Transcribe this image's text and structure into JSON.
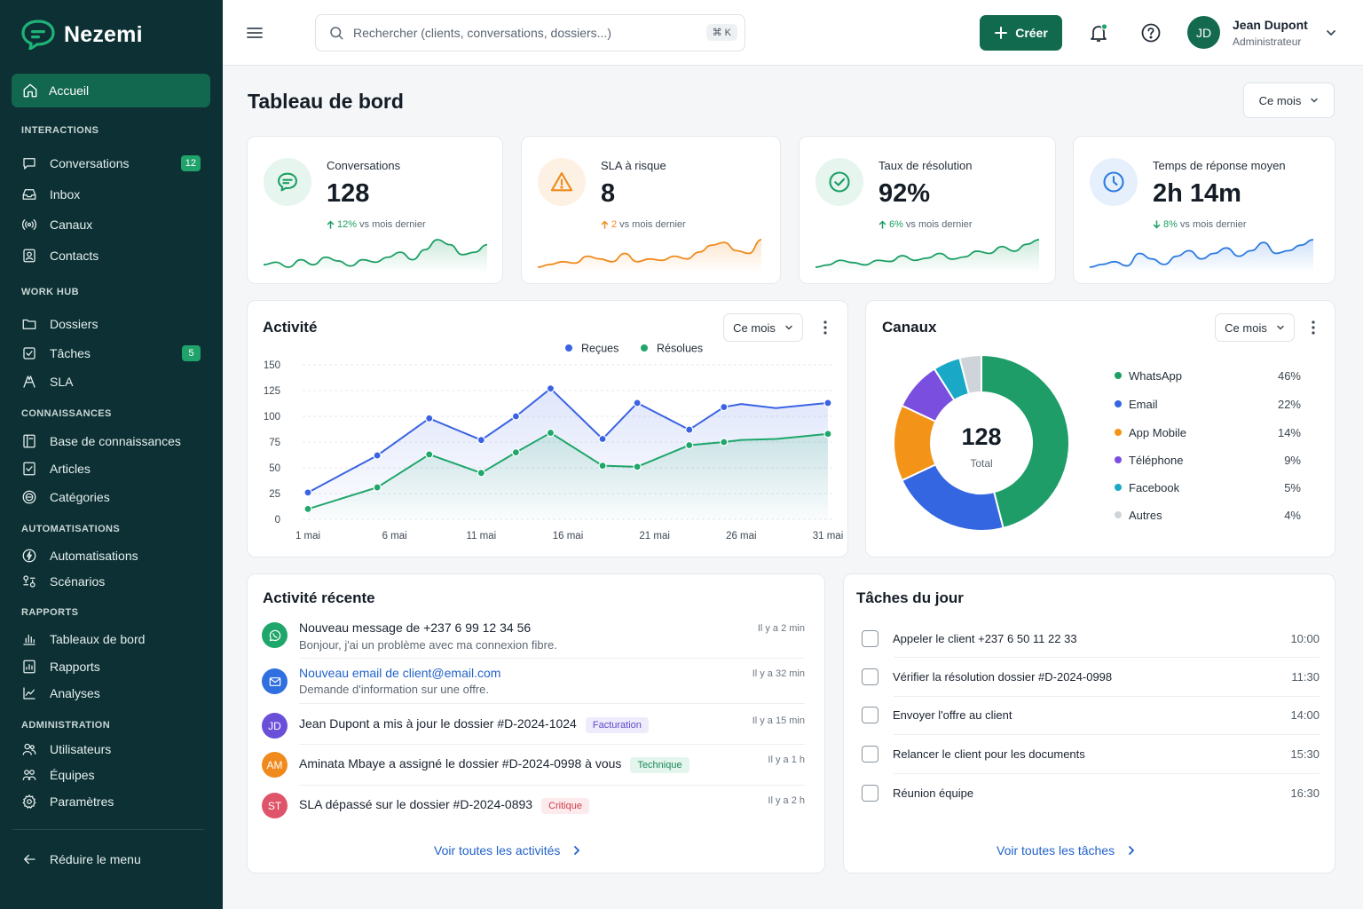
{
  "app": {
    "name": "Nezemi"
  },
  "sidebar": {
    "active_item": "Accueil",
    "sections": [
      {
        "title": "INTERACTIONS",
        "items": [
          {
            "label": "Conversations",
            "icon": "chat-icon",
            "badge": "12"
          },
          {
            "label": "Inbox",
            "icon": "inbox-icon"
          },
          {
            "label": "Canaux",
            "icon": "broadcast-icon"
          },
          {
            "label": "Contacts",
            "icon": "contact-icon"
          }
        ]
      },
      {
        "title": "WORK HUB",
        "items": [
          {
            "label": "Dossiers",
            "icon": "folder-icon"
          },
          {
            "label": "Tâches",
            "icon": "checkbox-icon",
            "badge": "5"
          },
          {
            "label": "SLA",
            "icon": "sla-icon"
          }
        ]
      },
      {
        "title": "CONNAISSANCES",
        "items": [
          {
            "label": "Base de connaissances",
            "icon": "book-icon"
          },
          {
            "label": "Articles",
            "icon": "article-icon"
          },
          {
            "label": "Catégories",
            "icon": "category-icon"
          }
        ]
      },
      {
        "title": "AUTOMATISATIONS",
        "items": [
          {
            "label": "Automatisations",
            "icon": "automation-icon"
          },
          {
            "label": "Scénarios",
            "icon": "scenario-icon"
          }
        ]
      },
      {
        "title": "RAPPORTS",
        "items": [
          {
            "label": "Tableaux de bord",
            "icon": "bar-chart-icon"
          },
          {
            "label": "Rapports",
            "icon": "report-icon"
          },
          {
            "label": "Analyses",
            "icon": "line-chart-icon"
          }
        ]
      },
      {
        "title": "ADMINISTRATION",
        "items": [
          {
            "label": "Utilisateurs",
            "icon": "users-icon"
          },
          {
            "label": "Équipes",
            "icon": "team-icon"
          },
          {
            "label": "Paramètres",
            "icon": "gear-icon"
          }
        ]
      }
    ],
    "collapse_label": "Réduire le menu"
  },
  "topbar": {
    "search_placeholder": "Rechercher (clients, conversations, dossiers...)",
    "shortcut": "⌘ K",
    "create_label": "Créer",
    "user": {
      "initials": "JD",
      "name": "Jean Dupont",
      "role": "Administrateur"
    }
  },
  "page": {
    "title": "Tableau de bord",
    "period": "Ce mois"
  },
  "kpis": [
    {
      "label": "Conversations",
      "value": "128",
      "trend_value": "12%",
      "trend_text": "vs mois dernier",
      "direction": "up",
      "color": "#1a9f64",
      "bg": "#e6f5ee",
      "icon": "chat-bubble-icon",
      "spark": [
        6,
        8,
        4,
        10,
        6,
        12,
        9,
        5,
        10,
        8,
        12,
        16,
        10,
        18,
        26,
        22,
        14,
        16,
        22
      ]
    },
    {
      "label": "SLA à risque",
      "value": "8",
      "trend_value": "2",
      "trend_text": "vs mois dernier",
      "direction": "up",
      "color": "#f08a1c",
      "bg": "#fdf1e4",
      "icon": "warning-icon",
      "spark": [
        4,
        6,
        8,
        7,
        12,
        10,
        8,
        14,
        8,
        10,
        9,
        12,
        10,
        15,
        20,
        22,
        16,
        14,
        24
      ]
    },
    {
      "label": "Taux de résolution",
      "value": "92%",
      "trend_value": "6%",
      "trend_text": "vs mois dernier",
      "direction": "up",
      "color": "#1a9f64",
      "bg": "#e6f5ee",
      "icon": "check-circle-icon",
      "spark": [
        4,
        6,
        10,
        8,
        6,
        10,
        9,
        14,
        10,
        12,
        16,
        11,
        13,
        18,
        16,
        22,
        18,
        24,
        28
      ]
    },
    {
      "label": "Temps de réponse moyen",
      "value": "2h 14m",
      "trend_value": "8%",
      "trend_text": "vs mois dernier",
      "direction": "down",
      "color": "#2d7be0",
      "bg": "#e6f0fc",
      "icon": "clock-icon",
      "spark": [
        6,
        8,
        10,
        7,
        16,
        12,
        8,
        14,
        18,
        12,
        16,
        20,
        14,
        18,
        24,
        16,
        18,
        22,
        26
      ]
    }
  ],
  "activity_card": {
    "title": "Activité",
    "period": "Ce mois"
  },
  "chart_data": {
    "type": "line",
    "x": [
      "1 mai",
      "6 mai",
      "11 mai",
      "16 mai",
      "21 mai",
      "26 mai",
      "31 mai"
    ],
    "ylim": [
      0,
      150
    ],
    "yticks": [
      0,
      25,
      50,
      75,
      100,
      125,
      150
    ],
    "legend_position": "top-center",
    "grid": true,
    "series": [
      {
        "name": "Reçues",
        "color": "#3a63e3",
        "points": [
          [
            1,
            26
          ],
          [
            5,
            62
          ],
          [
            8,
            98
          ],
          [
            11,
            77
          ],
          [
            13,
            100
          ],
          [
            15,
            127
          ],
          [
            18,
            78
          ],
          [
            20,
            113
          ],
          [
            23,
            87
          ],
          [
            25,
            109
          ],
          [
            26,
            112
          ],
          [
            28,
            108
          ],
          [
            31,
            113
          ]
        ]
      },
      {
        "name": "Résolues",
        "color": "#1fa66a",
        "points": [
          [
            1,
            10
          ],
          [
            5,
            31
          ],
          [
            8,
            63
          ],
          [
            11,
            45
          ],
          [
            13,
            65
          ],
          [
            15,
            84
          ],
          [
            18,
            52
          ],
          [
            20,
            51
          ],
          [
            23,
            72
          ],
          [
            25,
            75
          ],
          [
            26,
            77
          ],
          [
            28,
            78
          ],
          [
            31,
            83
          ]
        ]
      }
    ]
  },
  "channels": {
    "title": "Canaux",
    "period": "Ce mois",
    "total_value": "128",
    "total_label": "Total",
    "slices": [
      {
        "name": "WhatsApp",
        "pct": "46%",
        "value": 46,
        "color": "#1f9d68"
      },
      {
        "name": "Email",
        "pct": "22%",
        "value": 22,
        "color": "#3366e0"
      },
      {
        "name": "App Mobile",
        "pct": "14%",
        "value": 14,
        "color": "#f39419"
      },
      {
        "name": "Téléphone",
        "pct": "9%",
        "value": 9,
        "color": "#7a4fe0"
      },
      {
        "name": "Facebook",
        "pct": "5%",
        "value": 5,
        "color": "#19a9c7"
      },
      {
        "name": "Autres",
        "pct": "4%",
        "value": 4,
        "color": "#cfd4da"
      }
    ]
  },
  "recent_activity": {
    "title": "Activité récente",
    "items": [
      {
        "avatar": "",
        "avatar_color": "#1fa66a",
        "icon": "whatsapp-icon",
        "title": "Nouveau message de +237 6 99 12 34 56",
        "subtitle": "Bonjour, j'ai un problème avec ma connexion fibre.",
        "time": "Il y a 2 min"
      },
      {
        "avatar": "",
        "avatar_color": "#2f6fe0",
        "icon": "mail-icon",
        "title": "Nouveau email de client@email.com",
        "subtitle": "Demande d'information sur une offre.",
        "time": "Il y a 32 min",
        "title_color": "#2162c9"
      },
      {
        "avatar": "JD",
        "avatar_color": "#6a4fd8",
        "title": "Jean Dupont a mis à jour le dossier #D-2024-1024",
        "tag": "Facturation",
        "tag_color": "#5b49c9",
        "tag_bg": "#eeebfb",
        "time": "Il y a 15 min"
      },
      {
        "avatar": "AM",
        "avatar_color": "#f08a1c",
        "title": "Aminata Mbaye a assigné le dossier #D-2024-0998 à vous",
        "tag": "Technique",
        "tag_color": "#1a8a5a",
        "tag_bg": "#e3f5ec",
        "time": "Il y a 1 h"
      },
      {
        "avatar": "ST",
        "avatar_color": "#e0546a",
        "title": "SLA dépassé sur le dossier #D-2024-0893",
        "tag": "Critique",
        "tag_color": "#cf3e4c",
        "tag_bg": "#fdeaec",
        "time": "Il y a 2 h"
      }
    ],
    "link_label": "Voir toutes les activités"
  },
  "tasks": {
    "title": "Tâches du jour",
    "items": [
      {
        "label": "Appeler le client +237 6 50 11 22 33",
        "time": "10:00"
      },
      {
        "label": "Vérifier la résolution dossier #D-2024-0998",
        "time": "11:30"
      },
      {
        "label": "Envoyer l'offre au client",
        "time": "14:00"
      },
      {
        "label": "Relancer le client pour les documents",
        "time": "15:30"
      },
      {
        "label": "Réunion équipe",
        "time": "16:30"
      }
    ],
    "link_label": "Voir toutes les tâches"
  }
}
